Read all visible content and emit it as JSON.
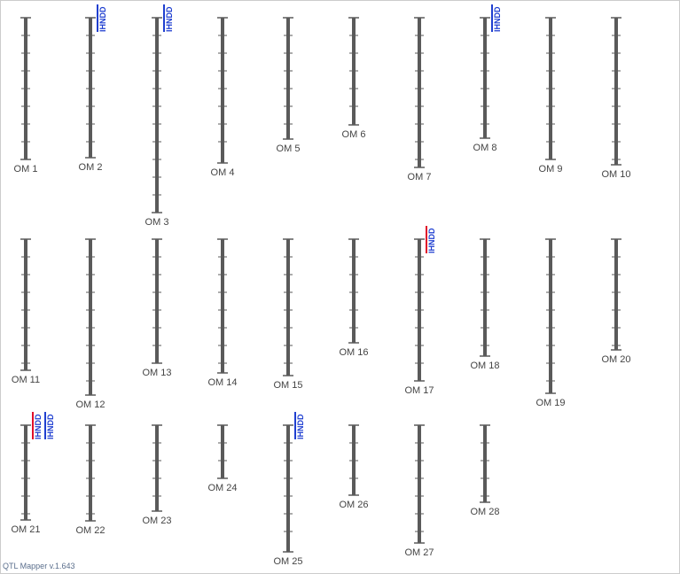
{
  "groups": [
    {
      "label": "OM 1"
    },
    {
      "label": "OM 2",
      "qtls": [
        {
          "label": "IHNDD",
          "color": "#1f3fd0"
        }
      ]
    },
    {
      "label": "OM 3",
      "qtls": [
        {
          "label": "IHNDD",
          "color": "#1f3fd0"
        }
      ]
    },
    {
      "label": "OM 4"
    },
    {
      "label": "OM 5"
    },
    {
      "label": "OM 6"
    },
    {
      "label": "OM 7"
    },
    {
      "label": "OM 8",
      "qtls": [
        {
          "label": "IHNDD",
          "color": "#1f3fd0"
        }
      ]
    },
    {
      "label": "OM 9"
    },
    {
      "label": "OM 10"
    },
    {
      "label": "OM 11"
    },
    {
      "label": "OM 12"
    },
    {
      "label": "OM 13"
    },
    {
      "label": "OM 14"
    },
    {
      "label": "OM 15"
    },
    {
      "label": "OM 16"
    },
    {
      "label": "OM 17",
      "qtls": [
        {
          "label": "IHNDD",
          "color": "#e0102a"
        }
      ]
    },
    {
      "label": "OM 18"
    },
    {
      "label": "OM 19"
    },
    {
      "label": "OM 20"
    },
    {
      "label": "OM 21",
      "qtls": [
        {
          "label": "IHNDD",
          "color": "#e0102a"
        },
        {
          "label": "IHNDD",
          "color": "#1f3fd0"
        }
      ]
    },
    {
      "label": "OM 22"
    },
    {
      "label": "OM 23"
    },
    {
      "label": "OM 24"
    },
    {
      "label": "OM 25",
      "qtls": [
        {
          "label": "IHNDD",
          "color": "#1f3fd0"
        }
      ]
    },
    {
      "label": "OM 26"
    },
    {
      "label": "OM 27"
    },
    {
      "label": "OM 28"
    }
  ],
  "footer": "QTL Mapper v.1.643"
}
